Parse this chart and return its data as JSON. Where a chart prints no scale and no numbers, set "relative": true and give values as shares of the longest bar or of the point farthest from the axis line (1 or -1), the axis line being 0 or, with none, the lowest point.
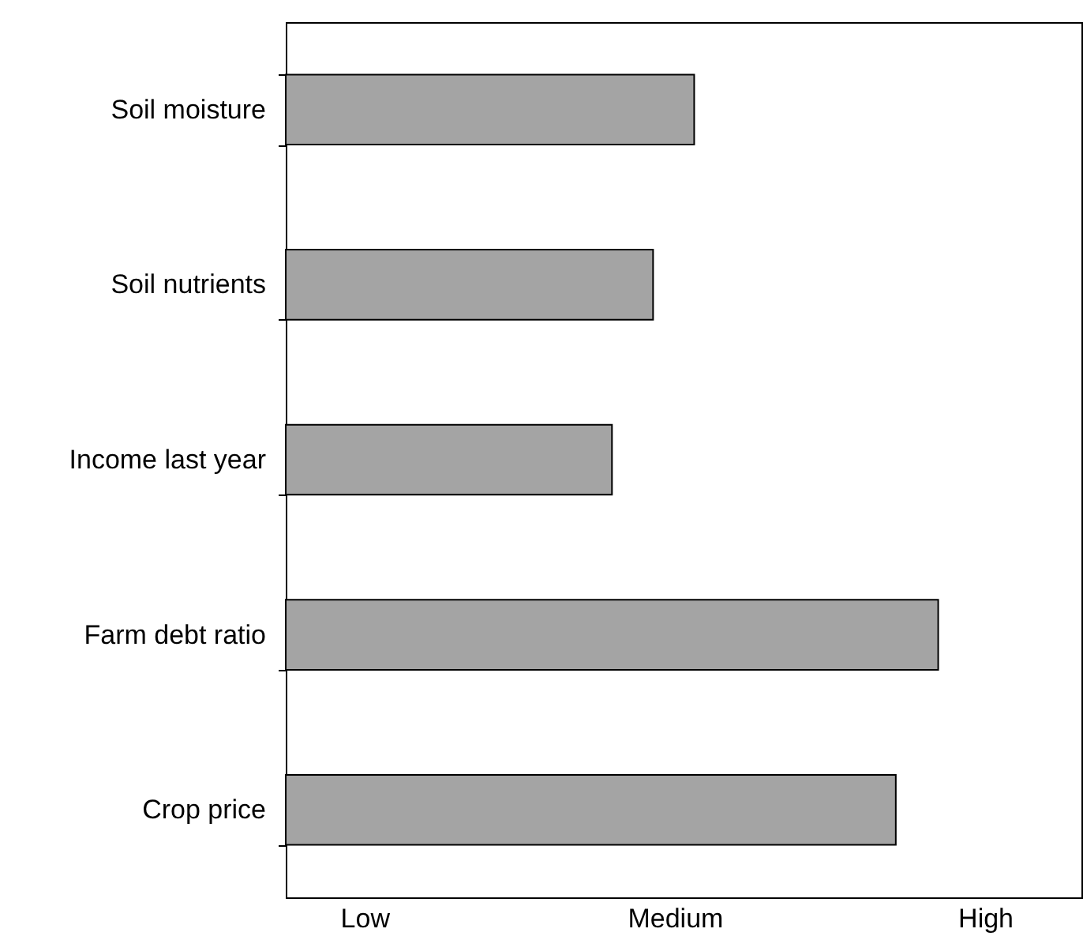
{
  "chart_data": {
    "type": "bar",
    "orientation": "horizontal",
    "relative": true,
    "categories": [
      "Soil moisture",
      "Soil nutrients",
      "Income last year",
      "Farm debt ratio",
      "Crop price"
    ],
    "values": [
      0.626,
      0.563,
      0.5,
      1,
      0.935
    ],
    "color": "#a4a4a4",
    "annotations": [
      "Low",
      "Medium",
      "High"
    ]
  }
}
